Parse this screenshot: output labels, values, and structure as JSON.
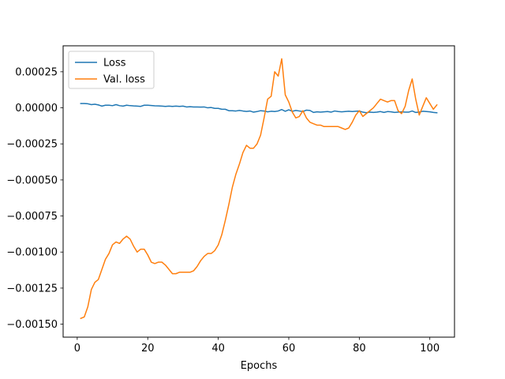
{
  "chart_data": {
    "type": "line",
    "title": "",
    "xlabel": "Epochs",
    "ylabel": "",
    "xlim": [
      -4,
      107
    ],
    "ylim": [
      -0.00159,
      0.00043
    ],
    "xticks": [
      0,
      20,
      40,
      60,
      80,
      100
    ],
    "yticks": [
      -0.0015,
      -0.00125,
      -0.001,
      -0.00075,
      -0.0005,
      -0.00025,
      0,
      0.00025
    ],
    "ytick_labels": [
      "−0.00150",
      "−0.00125",
      "−0.00100",
      "−0.00075",
      "−0.00050",
      "−0.00025",
      "0.00000",
      "0.00025"
    ],
    "xtick_labels": [
      "0",
      "20",
      "40",
      "60",
      "80",
      "100"
    ],
    "grid": false,
    "legend_position": "top-left",
    "series": [
      {
        "name": "Loss",
        "color": "#1f77b4",
        "x": [
          1,
          2,
          3,
          4,
          5,
          6,
          7,
          8,
          9,
          10,
          11,
          12,
          13,
          14,
          15,
          16,
          17,
          18,
          19,
          20,
          21,
          22,
          23,
          24,
          25,
          26,
          27,
          28,
          29,
          30,
          31,
          32,
          33,
          34,
          35,
          36,
          37,
          38,
          39,
          40,
          41,
          42,
          43,
          44,
          45,
          46,
          47,
          48,
          49,
          50,
          51,
          52,
          53,
          54,
          55,
          56,
          57,
          58,
          59,
          60,
          61,
          62,
          63,
          64,
          65,
          66,
          67,
          68,
          69,
          70,
          71,
          72,
          73,
          74,
          75,
          76,
          77,
          78,
          79,
          80,
          81,
          82,
          83,
          84,
          85,
          86,
          87,
          88,
          89,
          90,
          91,
          92,
          93,
          94,
          95,
          96,
          97,
          98,
          99,
          100,
          101,
          102
        ],
        "values": [
          3e-05,
          3e-05,
          2.8e-05,
          2.2e-05,
          2.5e-05,
          2e-05,
          1.2e-05,
          1.8e-05,
          1.8e-05,
          1.5e-05,
          2.2e-05,
          1.5e-05,
          1.2e-05,
          1.8e-05,
          1.5e-05,
          1.3e-05,
          1.2e-05,
          1e-05,
          1.8e-05,
          1.8e-05,
          1.6e-05,
          1.4e-05,
          1.3e-05,
          1.2e-05,
          1e-05,
          1.2e-05,
          1e-05,
          1.2e-05,
          1e-05,
          1.2e-05,
          6e-06,
          8e-06,
          6e-06,
          6e-06,
          5e-06,
          6e-06,
          0.0,
          2e-06,
          -4e-06,
          -4e-06,
          -1e-05,
          -1e-05,
          -2e-05,
          -2e-05,
          -2.2e-05,
          -1.8e-05,
          -2.2e-05,
          -2.5e-05,
          -2.2e-05,
          -3e-05,
          -2.6e-05,
          -2e-05,
          -2.2e-05,
          -2.8e-05,
          -2.4e-05,
          -2.6e-05,
          -2.2e-05,
          -1.2e-05,
          -2.4e-05,
          -1.4e-05,
          -2.4e-05,
          -1.8e-05,
          -2.2e-05,
          -2.6e-05,
          -1.6e-05,
          -1.8e-05,
          -3.2e-05,
          -2.8e-05,
          -3e-05,
          -2.8e-05,
          -2.6e-05,
          -3e-05,
          -2.2e-05,
          -2.6e-05,
          -2.8e-05,
          -2.6e-05,
          -2.4e-05,
          -2.6e-05,
          -2.4e-05,
          -2.2e-05,
          -3e-05,
          -3.4e-05,
          -3e-05,
          -3.2e-05,
          -3e-05,
          -2.6e-05,
          -3.2e-05,
          -2.6e-05,
          -2.8e-05,
          -3.2e-05,
          -3e-05,
          -2.8e-05,
          -3e-05,
          -3e-05,
          -2.2e-05,
          -3.2e-05,
          -3e-05,
          -2.4e-05,
          -2.6e-05,
          -2.8e-05,
          -3.2e-05,
          -3.4e-05
        ]
      },
      {
        "name": "Val. loss",
        "color": "#ff7f0e",
        "x": [
          1,
          2,
          3,
          4,
          5,
          6,
          7,
          8,
          9,
          10,
          11,
          12,
          13,
          14,
          15,
          16,
          17,
          18,
          19,
          20,
          21,
          22,
          23,
          24,
          25,
          26,
          27,
          28,
          29,
          30,
          31,
          32,
          33,
          34,
          35,
          36,
          37,
          38,
          39,
          40,
          41,
          42,
          43,
          44,
          45,
          46,
          47,
          48,
          49,
          50,
          51,
          52,
          53,
          54,
          55,
          56,
          57,
          58,
          59,
          60,
          61,
          62,
          63,
          64,
          65,
          66,
          67,
          68,
          69,
          70,
          71,
          72,
          73,
          74,
          75,
          76,
          77,
          78,
          79,
          80,
          81,
          82,
          83,
          84,
          85,
          86,
          87,
          88,
          89,
          90,
          91,
          92,
          93,
          94,
          95,
          96,
          97,
          98,
          99,
          100,
          101,
          102
        ],
        "values": [
          -0.00146,
          -0.00145,
          -0.00138,
          -0.00126,
          -0.00121,
          -0.00119,
          -0.00112,
          -0.00105,
          -0.00101,
          -0.00095,
          -0.00093,
          -0.00094,
          -0.00091,
          -0.00089,
          -0.00091,
          -0.00096,
          -0.001,
          -0.00098,
          -0.00098,
          -0.00102,
          -0.00107,
          -0.00108,
          -0.00107,
          -0.00107,
          -0.00109,
          -0.00112,
          -0.00115,
          -0.00115,
          -0.00114,
          -0.00114,
          -0.00114,
          -0.00114,
          -0.00113,
          -0.0011,
          -0.00106,
          -0.00103,
          -0.00101,
          -0.00101,
          -0.00099,
          -0.00095,
          -0.00088,
          -0.00078,
          -0.00067,
          -0.00055,
          -0.00046,
          -0.00039,
          -0.00031,
          -0.00026,
          -0.00028,
          -0.00028,
          -0.00025,
          -0.00019,
          -7e-05,
          6e-05,
          8e-05,
          0.00025,
          0.00022,
          0.00034,
          9e-05,
          4e-05,
          -3e-05,
          -7e-05,
          -6e-05,
          -2e-05,
          -7e-05,
          -0.0001,
          -0.00011,
          -0.00012,
          -0.00012,
          -0.00013,
          -0.00013,
          -0.00013,
          -0.00013,
          -0.00013,
          -0.00014,
          -0.00015,
          -0.00014,
          -0.0001,
          -5e-05,
          -2e-05,
          -6e-05,
          -4e-05,
          -2e-05,
          0.0,
          3e-05,
          6e-05,
          5e-05,
          4e-05,
          5e-05,
          5e-05,
          -2e-05,
          -4e-05,
          1e-05,
          0.00012,
          0.0002,
          6e-05,
          -5e-05,
          1e-05,
          7e-05,
          3e-05,
          -1e-05,
          2e-05
        ]
      }
    ]
  }
}
